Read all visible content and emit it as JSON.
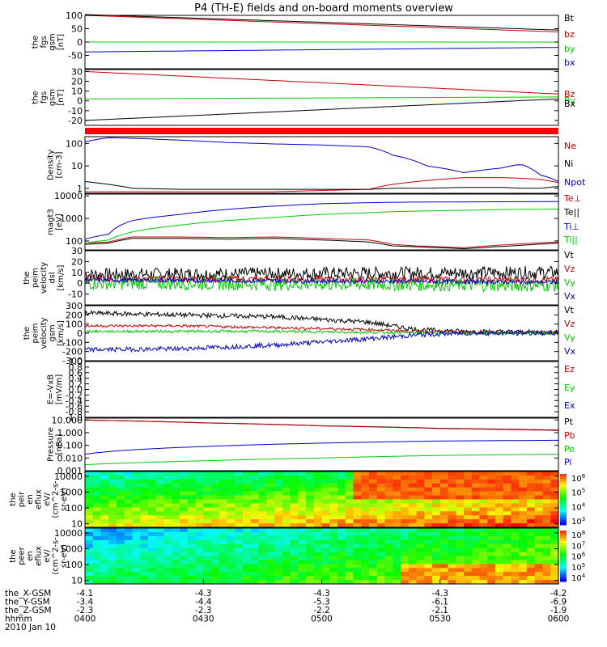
{
  "title": "P4 (TH-E) fields and on-board moments overview",
  "chart_data": [
    {
      "id": "p1",
      "type": "line",
      "ylabel": [
        "the",
        "fgs",
        "gsm",
        "[nT]"
      ],
      "ylim": [
        -100,
        100
      ],
      "yticks": [
        "100",
        "50",
        "0",
        "-50"
      ],
      "yticks_v": [
        100,
        50,
        0,
        -50
      ],
      "x": [
        0,
        1
      ],
      "series": [
        {
          "name": "Bt",
          "color": "#000000",
          "values": [
            103,
            45
          ],
          "legend_color": "#000000"
        },
        {
          "name": "bz",
          "color": "#cc0000",
          "values": [
            100,
            38
          ],
          "legend_color": "#cc0000"
        },
        {
          "name": "by",
          "color": "#00cc00",
          "values": [
            0,
            0
          ],
          "legend_color": "#00cc00"
        },
        {
          "name": "bx",
          "color": "#0000cc",
          "values": [
            -37,
            -20
          ],
          "legend_color": "#0000cc"
        }
      ]
    },
    {
      "id": "p2",
      "type": "line",
      "ylabel": [
        "the",
        "fgs",
        "gsm",
        "[nT]"
      ],
      "ylim": [
        -25,
        32
      ],
      "yticks": [
        "30",
        "20",
        "10",
        "0",
        "-10",
        "-20"
      ],
      "yticks_v": [
        30,
        20,
        10,
        0,
        -10,
        -20
      ],
      "x": [
        0,
        1
      ],
      "series": [
        {
          "name": "Bz",
          "color": "#cc0000",
          "values": [
            30,
            7
          ],
          "legend_color": "#cc0000"
        },
        {
          "name": "By",
          "color": "#00cc00",
          "values": [
            2,
            4
          ],
          "legend_color": "#00cc00"
        },
        {
          "name": "Bx",
          "color": "#000000",
          "values": [
            -20,
            2
          ],
          "legend_color": "#000000"
        }
      ]
    },
    {
      "id": "p3",
      "type": "line",
      "log": true,
      "ylabel": [
        "Density",
        "[cm-3]"
      ],
      "ylim": [
        0.6,
        200
      ],
      "yticks": [
        "100",
        "10",
        "1"
      ],
      "yticks_v": [
        100,
        10,
        1
      ],
      "x": [
        0,
        0.05,
        0.1,
        0.2,
        0.3,
        0.4,
        0.5,
        0.6,
        0.65,
        0.72,
        0.8,
        0.88,
        0.92,
        0.96,
        1
      ],
      "series": [
        {
          "name": "Ne",
          "color": "#cc0000",
          "values": [
            0.7,
            0.7,
            0.7,
            0.7,
            0.7,
            0.7,
            0.8,
            0.9,
            1.5,
            2.2,
            3.0,
            3.0,
            2.8,
            2.5,
            1.8
          ],
          "legend_color": "#cc0000"
        },
        {
          "name": "Ni",
          "color": "#000000",
          "values": [
            2.0,
            1.5,
            1.0,
            0.9,
            0.9,
            0.9,
            0.9,
            0.9,
            1.0,
            1.0,
            1.1,
            1.1,
            1.0,
            1.0,
            1.2
          ],
          "legend_color": "#000000"
        },
        {
          "name": "Npot",
          "color": "#0000cc",
          "values": [
            120,
            180,
            170,
            140,
            110,
            95,
            85,
            70,
            30,
            10,
            5,
            8,
            12,
            4,
            2
          ],
          "legend_color": "#0000cc"
        }
      ]
    },
    {
      "id": "p4",
      "type": "line",
      "log": true,
      "ylabel": [
        "magt3",
        "[eV]"
      ],
      "ylim": [
        40,
        12000
      ],
      "yticks": [
        "10000",
        "1000",
        "100"
      ],
      "yticks_v": [
        10000,
        1000,
        100
      ],
      "x": [
        0,
        0.05,
        0.1,
        0.2,
        0.3,
        0.4,
        0.5,
        0.6,
        0.65,
        0.7,
        0.8,
        0.9,
        1
      ],
      "series": [
        {
          "name": "Te⊥",
          "color": "#cc0000",
          "values": [
            80,
            90,
            150,
            150,
            140,
            150,
            130,
            110,
            70,
            60,
            50,
            70,
            90
          ],
          "legend_color": "#cc0000"
        },
        {
          "name": "Te||",
          "color": "#000000",
          "values": [
            70,
            80,
            130,
            130,
            120,
            130,
            110,
            90,
            60,
            55,
            45,
            60,
            80
          ],
          "legend_color": "#000000"
        },
        {
          "name": "Ti⊥",
          "color": "#0000cc",
          "values": [
            120,
            200,
            800,
            1500,
            2500,
            3500,
            4500,
            5000,
            5200,
            5300,
            5400,
            5500,
            5600
          ],
          "legend_color": "#0000cc"
        },
        {
          "name": "Ti||",
          "color": "#00cc00",
          "values": [
            80,
            110,
            250,
            500,
            800,
            1100,
            1500,
            1800,
            2000,
            2100,
            2300,
            2500,
            2600
          ],
          "legend_color": "#00cc00"
        }
      ]
    },
    {
      "id": "p5",
      "type": "line",
      "noisy": true,
      "ylabel": [
        "the",
        "peim",
        "velocity",
        "dsl",
        "[km/s]"
      ],
      "ylim": [
        -20,
        30
      ],
      "yticks": [
        "30",
        "20",
        "10",
        "0",
        "-10"
      ],
      "yticks_v": [
        30,
        20,
        10,
        0,
        -10
      ],
      "x": [
        0,
        1
      ],
      "series": [
        {
          "name": "Vt",
          "color": "#000000",
          "values": [
            8,
            10
          ],
          "noise": 6,
          "legend_color": "#000000"
        },
        {
          "name": "Vz",
          "color": "#cc0000",
          "values": [
            4,
            3
          ],
          "noise": 3,
          "legend_color": "#cc0000"
        },
        {
          "name": "Vy",
          "color": "#00cc00",
          "values": [
            0,
            -2
          ],
          "noise": 6,
          "legend_color": "#00cc00"
        },
        {
          "name": "Vx",
          "color": "#0000cc",
          "values": [
            3,
            1
          ],
          "noise": 2,
          "legend_color": "#0000cc"
        }
      ]
    },
    {
      "id": "p6",
      "type": "line",
      "noisy": true,
      "ylabel": [
        "the",
        "peim",
        "velocity",
        "gsm",
        "[km/s]"
      ],
      "ylim": [
        -300,
        300
      ],
      "yticks": [
        "300",
        "200",
        "100",
        "0",
        "-100",
        "-200",
        "-300"
      ],
      "yticks_v": [
        300,
        200,
        100,
        0,
        -100,
        -200,
        -300
      ],
      "x": [
        0,
        0.2,
        0.4,
        0.6,
        0.7,
        0.8,
        1
      ],
      "series": [
        {
          "name": "Vt",
          "color": "#000000",
          "values": [
            220,
            200,
            180,
            120,
            40,
            20,
            10
          ],
          "noise": 25,
          "legend_color": "#000000"
        },
        {
          "name": "Vz",
          "color": "#cc0000",
          "values": [
            80,
            80,
            60,
            40,
            20,
            10,
            5
          ],
          "noise": 15,
          "legend_color": "#cc0000"
        },
        {
          "name": "Vy",
          "color": "#00cc00",
          "values": [
            20,
            20,
            20,
            10,
            5,
            0,
            0
          ],
          "noise": 15,
          "legend_color": "#00cc00"
        },
        {
          "name": "Vx",
          "color": "#0000cc",
          "values": [
            -180,
            -170,
            -130,
            -60,
            -20,
            0,
            0
          ],
          "noise": 25,
          "legend_color": "#0000cc"
        }
      ]
    },
    {
      "id": "p7",
      "type": "line",
      "ylabel": [
        "E=-VxB",
        "[mV/m]"
      ],
      "ylim": [
        -1,
        1
      ],
      "yticks": [
        "1.0",
        "0.8",
        "0.6",
        "0.4",
        "0.2",
        "0.0",
        "-0.2",
        "-0.4",
        "-0.6",
        "-0.8",
        "-1.0"
      ],
      "yticks_v": [
        1,
        0.8,
        0.6,
        0.4,
        0.2,
        0,
        -0.2,
        -0.4,
        -0.6,
        -0.8,
        -1
      ],
      "x": [],
      "series": [
        {
          "name": "Ez",
          "color": "#cc0000",
          "values": [],
          "legend_color": "#cc0000"
        },
        {
          "name": "Ey",
          "color": "#00cc00",
          "values": [],
          "legend_color": "#00cc00"
        },
        {
          "name": "Ex",
          "color": "#0000cc",
          "values": [],
          "legend_color": "#0000cc"
        }
      ]
    },
    {
      "id": "p8",
      "type": "line",
      "log": true,
      "ylabel": [
        "Pressure",
        "[nPa]"
      ],
      "ylim": [
        0.001,
        14
      ],
      "yticks": [
        "10.000",
        "1.000",
        "0.100",
        "0.010",
        "0.001"
      ],
      "yticks_v": [
        10,
        1,
        0.1,
        0.01,
        0.001
      ],
      "x": [
        0,
        0.25,
        0.5,
        0.75,
        1
      ],
      "series": [
        {
          "name": "Pt",
          "color": "#000000",
          "values": [
            10,
            6,
            3.5,
            2.2,
            1.6
          ],
          "legend_color": "#000000"
        },
        {
          "name": "Pb",
          "color": "#cc0000",
          "values": [
            9.8,
            5.9,
            3.4,
            2.1,
            1.5
          ],
          "legend_color": "#cc0000"
        },
        {
          "name": "Pe",
          "color": "#00cc00",
          "values": [
            0.003,
            0.006,
            0.01,
            0.016,
            0.02
          ],
          "legend_color": "#00cc00"
        },
        {
          "name": "Pi",
          "color": "#0000cc",
          "values": [
            0.02,
            0.08,
            0.15,
            0.22,
            0.25
          ],
          "legend_color": "#0000cc"
        }
      ]
    },
    {
      "id": "p9",
      "type": "heatmap",
      "ylabel": [
        "the",
        "peir",
        "en",
        "eflux",
        "eV/",
        "(cm^2-s-",
        "sr-eV)"
      ],
      "yticks": [
        "10000",
        "1000",
        "100",
        "10"
      ],
      "yticks_v": [
        10000,
        1000,
        100,
        10
      ],
      "ylim": [
        6,
        20000
      ],
      "colorbar_ticks": [
        "10^6",
        "10^5",
        "10^4",
        "10^3"
      ]
    },
    {
      "id": "p10",
      "type": "heatmap",
      "ylabel": [
        "the",
        "peer",
        "en",
        "eflux",
        "eV/",
        "(cm^2-s-",
        "sr-eV)"
      ],
      "yticks": [
        "10000",
        "1000",
        "100",
        "10"
      ],
      "yticks_v": [
        10000,
        1000,
        100,
        10
      ],
      "ylim": [
        6,
        20000
      ],
      "colorbar_ticks": [
        "10^8",
        "10^7",
        "10^6",
        "10^5",
        "10^4"
      ]
    }
  ],
  "x_axis": {
    "rows": [
      {
        "label": "the_X-GSM",
        "values": [
          "-4.1",
          "-4.3",
          "-4.3",
          "-4.3",
          "-4.2"
        ]
      },
      {
        "label": "the_Y-GSM",
        "values": [
          "-3.4",
          "-4.4",
          "-5.3",
          "-6.1",
          "-6.9"
        ]
      },
      {
        "label": "the_Z-GSM",
        "values": [
          "-2.3",
          "-2.3",
          "-2.2",
          "-2.1",
          "-1.9"
        ]
      },
      {
        "label": "hhmm",
        "values": [
          "0400",
          "0430",
          "0500",
          "0530",
          "0600"
        ]
      }
    ],
    "date": "2010 Jan 10"
  },
  "separator_color": "#ff0000"
}
